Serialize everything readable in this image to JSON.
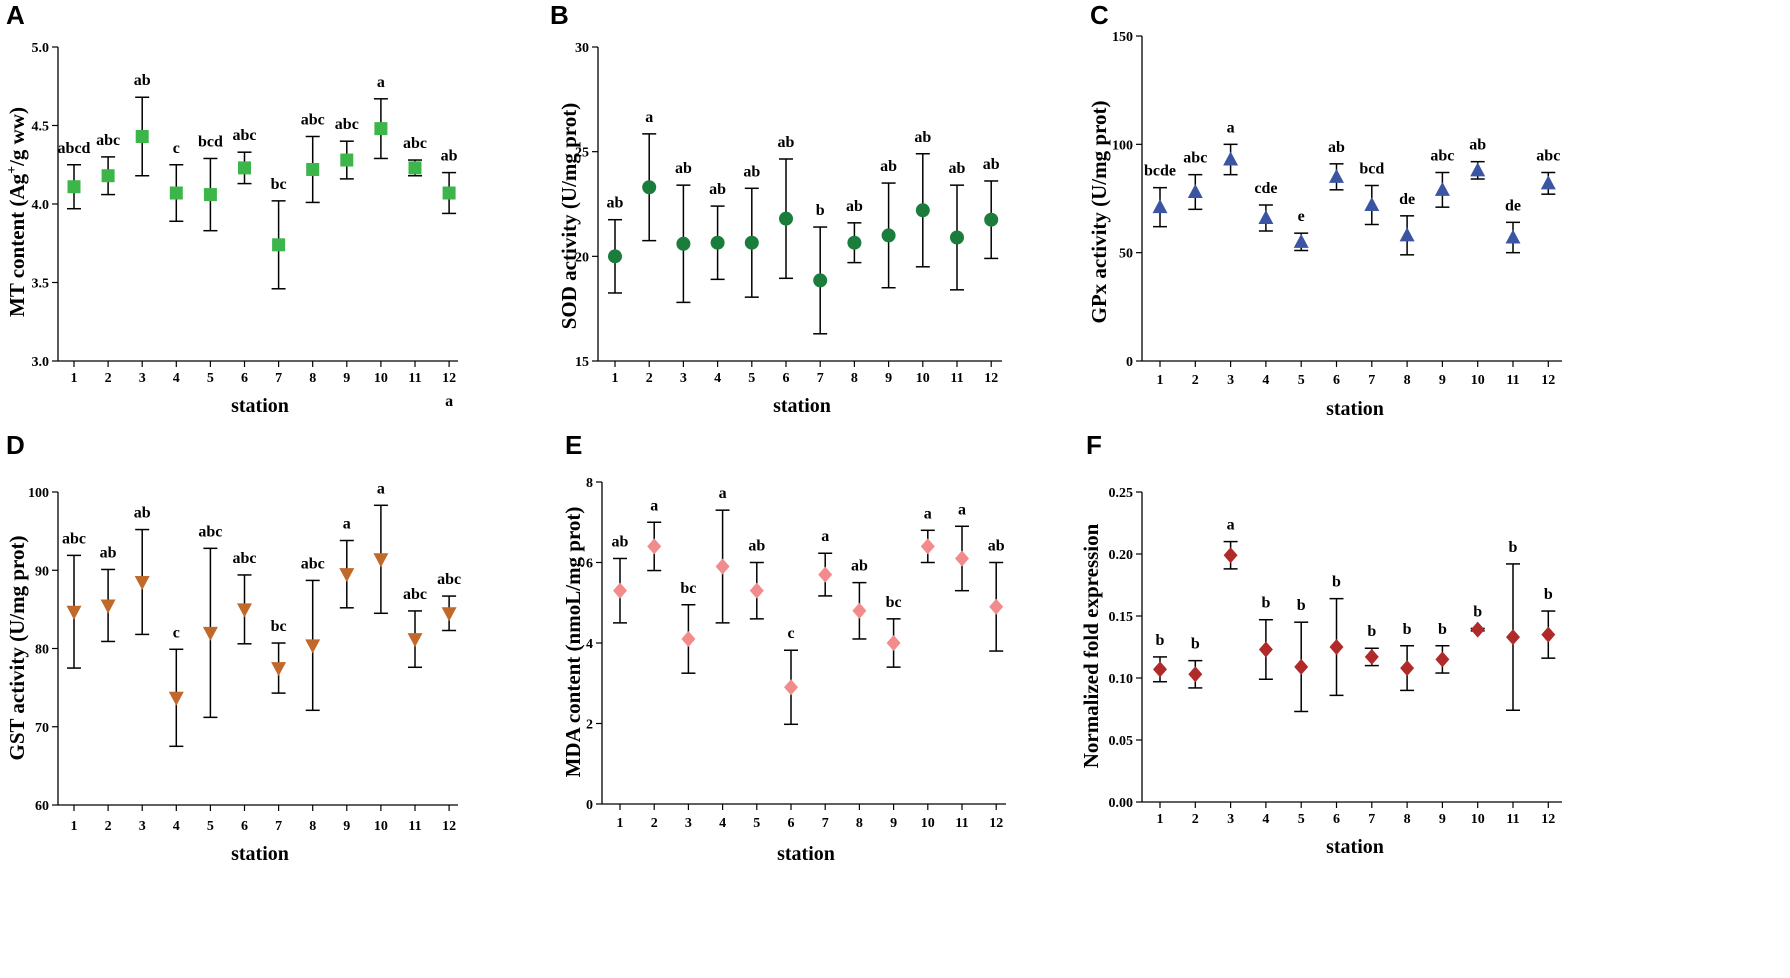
{
  "chart_data": [
    {
      "type": "scatter",
      "panel": "A",
      "ylabel_prefix": "MT content (Ag",
      "ylabel_sup": "+",
      "ylabel_suffix": "/g ww)",
      "xlabel": "station",
      "categories": [
        "1",
        "2",
        "3",
        "4",
        "5",
        "6",
        "7",
        "8",
        "9",
        "10",
        "11",
        "12"
      ],
      "values": [
        4.11,
        4.18,
        4.43,
        4.07,
        4.06,
        4.23,
        3.74,
        4.22,
        4.28,
        4.48,
        4.23,
        4.07
      ],
      "errors": [
        0.14,
        0.12,
        0.25,
        0.18,
        0.23,
        0.1,
        0.28,
        0.21,
        0.12,
        0.19,
        0.05,
        0.13
      ],
      "labels": [
        "abcd",
        "abc",
        "ab",
        "c",
        "bcd",
        "abc",
        "bc",
        "abc",
        "abc",
        "a",
        "abc",
        "ab"
      ],
      "extra_label": "a",
      "ylim": [
        3.0,
        5.0
      ],
      "yticks": [
        "3.0",
        "3.5",
        "4.0",
        "4.5",
        "5.0"
      ],
      "marker": "square",
      "color": "#3cb54a"
    },
    {
      "type": "scatter",
      "panel": "B",
      "ylabel": "SOD activity (U/mg prot)",
      "xlabel": "station",
      "categories": [
        "1",
        "2",
        "3",
        "4",
        "5",
        "6",
        "7",
        "8",
        "9",
        "10",
        "11",
        "12"
      ],
      "values": [
        20.0,
        23.3,
        20.6,
        20.65,
        20.65,
        21.8,
        18.85,
        20.65,
        21.0,
        22.2,
        20.9,
        21.75
      ],
      "errors": [
        1.75,
        2.55,
        2.8,
        1.75,
        2.6,
        2.85,
        2.55,
        0.95,
        2.5,
        2.7,
        2.5,
        1.85
      ],
      "labels": [
        "ab",
        "a",
        "ab",
        "ab",
        "ab",
        "ab",
        "b",
        "ab",
        "ab",
        "ab",
        "ab",
        "ab"
      ],
      "ylim": [
        15,
        30
      ],
      "yticks": [
        "15",
        "20",
        "25",
        "30"
      ],
      "marker": "circle",
      "color": "#1a7d3b"
    },
    {
      "type": "scatter",
      "panel": "C",
      "ylabel": "GPx activity (U/mg prot)",
      "xlabel": "station",
      "categories": [
        "1",
        "2",
        "3",
        "4",
        "5",
        "6",
        "7",
        "8",
        "9",
        "10",
        "11",
        "12"
      ],
      "values": [
        71,
        78,
        93,
        66,
        55,
        85,
        72,
        58,
        79,
        88,
        57,
        82
      ],
      "errors": [
        9,
        8,
        7,
        6,
        4,
        6,
        9,
        9,
        8,
        4,
        7,
        5
      ],
      "labels": [
        "bcde",
        "abc",
        "a",
        "cde",
        "e",
        "ab",
        "bcd",
        "de",
        "abc",
        "ab",
        "de",
        "abc"
      ],
      "ylim": [
        0,
        150
      ],
      "yticks": [
        "0",
        "50",
        "100",
        "150"
      ],
      "marker": "triangle-up",
      "color": "#3b55a3"
    },
    {
      "type": "scatter",
      "panel": "D",
      "ylabel": "GST activity (U/mg prot)",
      "xlabel": "station",
      "categories": [
        "1",
        "2",
        "3",
        "4",
        "5",
        "6",
        "7",
        "8",
        "9",
        "10",
        "11",
        "12"
      ],
      "values": [
        84.7,
        85.5,
        88.5,
        73.7,
        82.0,
        85.0,
        77.5,
        80.4,
        89.5,
        91.4,
        81.2,
        84.5
      ],
      "errors": [
        7.2,
        4.6,
        6.7,
        6.2,
        10.8,
        4.4,
        3.2,
        8.3,
        4.3,
        6.9,
        3.6,
        2.2
      ],
      "labels": [
        "abc",
        "ab",
        "ab",
        "c",
        "abc",
        "abc",
        "bc",
        "abc",
        "a",
        "a",
        "abc",
        "abc"
      ],
      "ylim": [
        60,
        100
      ],
      "yticks": [
        "60",
        "70",
        "80",
        "90",
        "100"
      ],
      "marker": "triangle-down",
      "color": "#c0692a"
    },
    {
      "type": "scatter",
      "panel": "E",
      "ylabel": "MDA content (nmoL/mg prot)",
      "xlabel": "station",
      "categories": [
        "1",
        "2",
        "3",
        "4",
        "5",
        "6",
        "7",
        "8",
        "9",
        "10",
        "11",
        "12"
      ],
      "values": [
        5.3,
        6.4,
        4.1,
        5.9,
        5.3,
        2.9,
        5.7,
        4.8,
        4.0,
        6.4,
        6.1,
        4.9
      ],
      "errors": [
        0.8,
        0.6,
        0.85,
        1.4,
        0.7,
        0.92,
        0.53,
        0.7,
        0.6,
        0.4,
        0.8,
        1.1
      ],
      "labels": [
        "ab",
        "a",
        "bc",
        "a",
        "ab",
        "c",
        "a",
        "ab",
        "bc",
        "a",
        "a",
        "ab"
      ],
      "ylim": [
        0,
        8
      ],
      "yticks": [
        "0",
        "2",
        "4",
        "6",
        "8"
      ],
      "marker": "diamond",
      "color": "#f28b8b"
    },
    {
      "type": "scatter",
      "panel": "F",
      "ylabel": "Normalized fold expression",
      "xlabel": "station",
      "categories": [
        "1",
        "2",
        "3",
        "4",
        "5",
        "6",
        "7",
        "8",
        "9",
        "10",
        "11",
        "12"
      ],
      "values": [
        0.107,
        0.103,
        0.199,
        0.123,
        0.109,
        0.125,
        0.117,
        0.108,
        0.115,
        0.139,
        0.133,
        0.135
      ],
      "errors": [
        0.01,
        0.011,
        0.011,
        0.024,
        0.036,
        0.039,
        0.007,
        0.018,
        0.011,
        0.001,
        0.059,
        0.019
      ],
      "labels": [
        "b",
        "b",
        "a",
        "b",
        "b",
        "b",
        "b",
        "b",
        "b",
        "b",
        "b",
        "b"
      ],
      "ylim": [
        0,
        0.25
      ],
      "yticks": [
        "0.00",
        "0.05",
        "0.10",
        "0.15",
        "0.20",
        "0.25"
      ],
      "marker": "diamond",
      "color": "#b02a2a"
    }
  ]
}
